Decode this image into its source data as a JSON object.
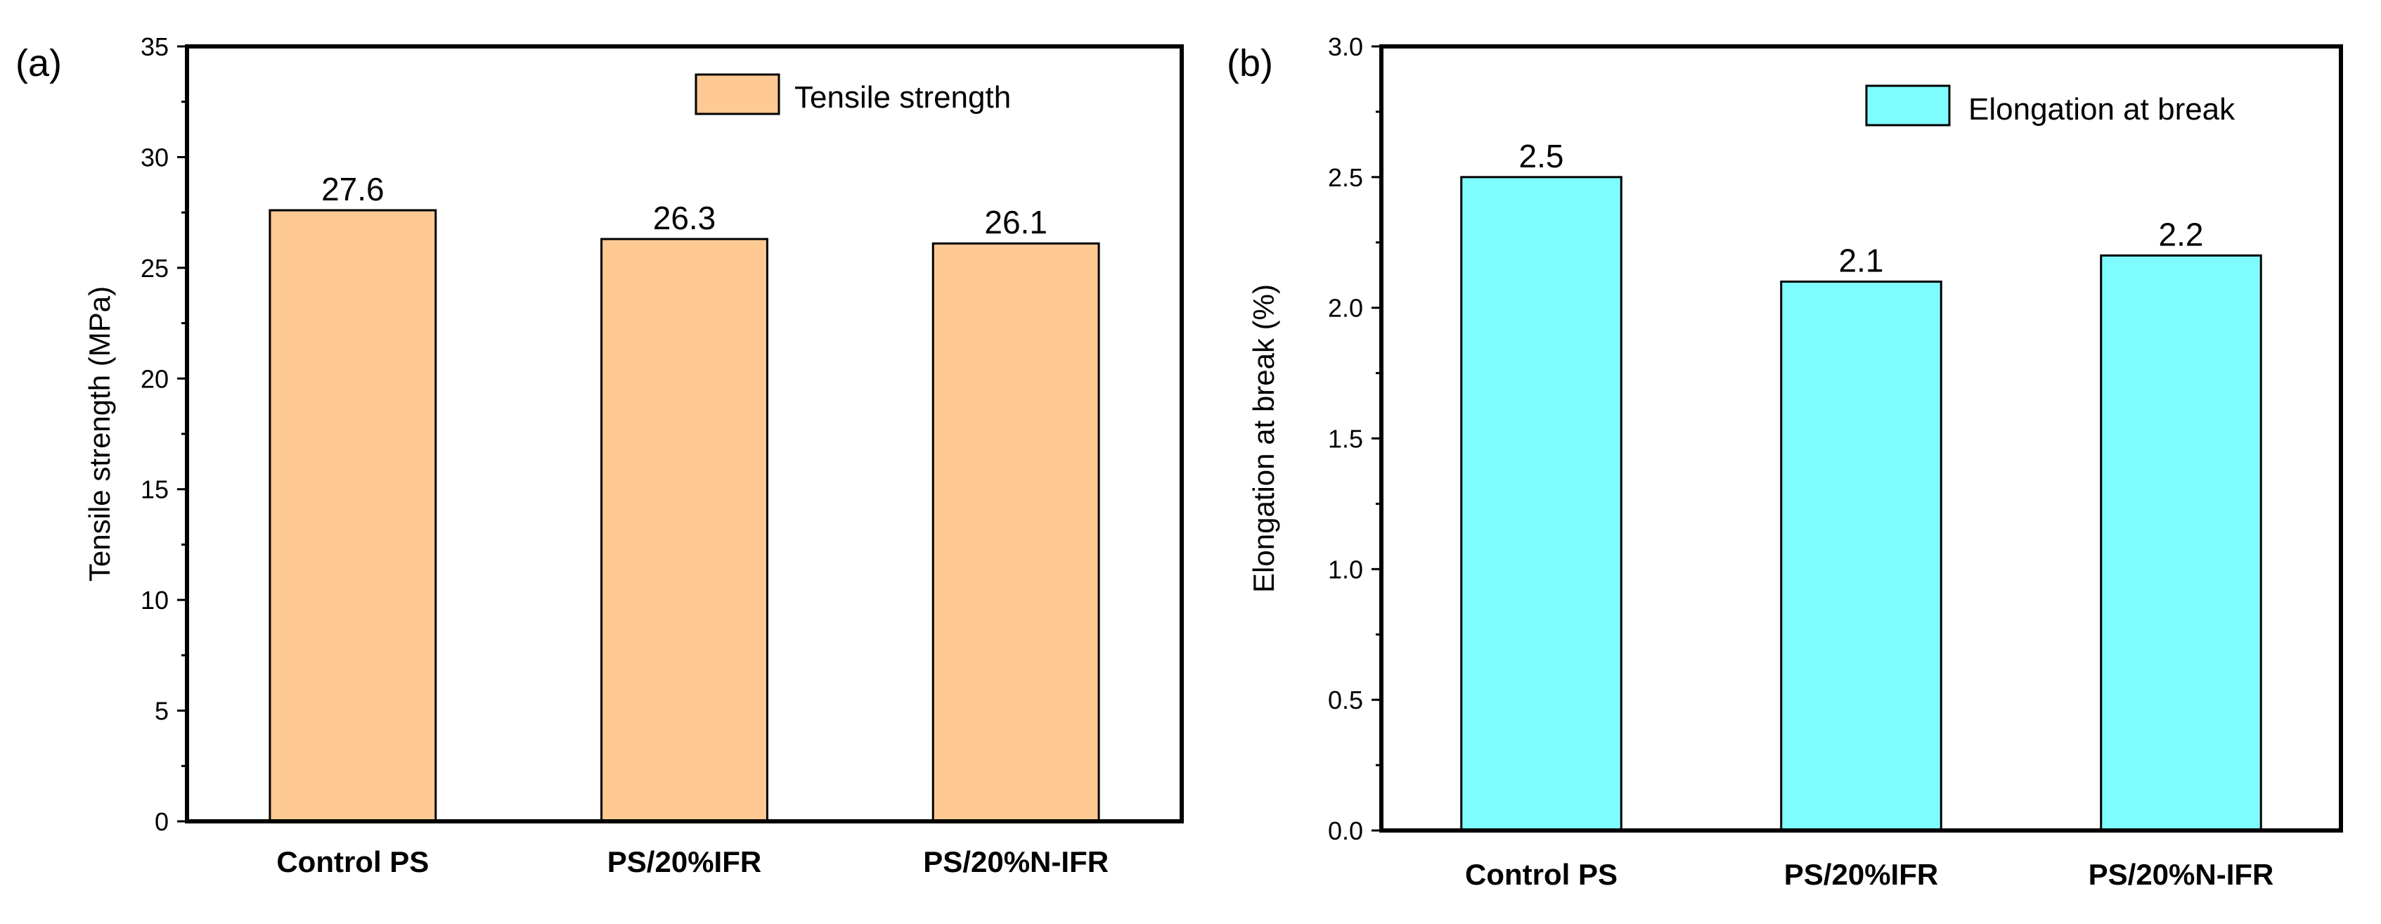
{
  "chart_data": [
    {
      "type": "bar",
      "panel_label": "(a)",
      "title": "",
      "xlabel": "",
      "ylabel": "Tensile strength (MPa)",
      "ylim": [
        0,
        35
      ],
      "yticks": [
        0,
        5,
        10,
        15,
        20,
        25,
        30,
        35
      ],
      "ytick_labels": [
        "0",
        "5",
        "10",
        "15",
        "20",
        "25",
        "30",
        "35"
      ],
      "categories": [
        "Control PS",
        "PS/20%IFR",
        "PS/20%N-IFR"
      ],
      "series": [
        {
          "name": "Tensile strength",
          "values": [
            27.6,
            26.3,
            26.1
          ],
          "labels": [
            "27.6",
            "26.3",
            "26.1"
          ],
          "color": "#ffc994"
        }
      ],
      "legend": "top-right",
      "grid": false
    },
    {
      "type": "bar",
      "panel_label": "(b)",
      "title": "",
      "xlabel": "",
      "ylabel": "Elongation at break (%)",
      "ylim": [
        0,
        3
      ],
      "yticks": [
        0,
        0.5,
        1,
        1.5,
        2,
        2.5,
        3
      ],
      "ytick_labels": [
        "0.0",
        "0.5",
        "1.0",
        "1.5",
        "2.0",
        "2.5",
        "3.0"
      ],
      "categories": [
        "Control PS",
        "PS/20%IFR",
        "PS/20%N-IFR"
      ],
      "series": [
        {
          "name": "Elongation at break",
          "values": [
            2.5,
            2.1,
            2.2
          ],
          "labels": [
            "2.5",
            "2.1",
            "2.2"
          ],
          "color": "#7ffcff"
        }
      ],
      "legend": "top-right",
      "grid": false
    }
  ]
}
